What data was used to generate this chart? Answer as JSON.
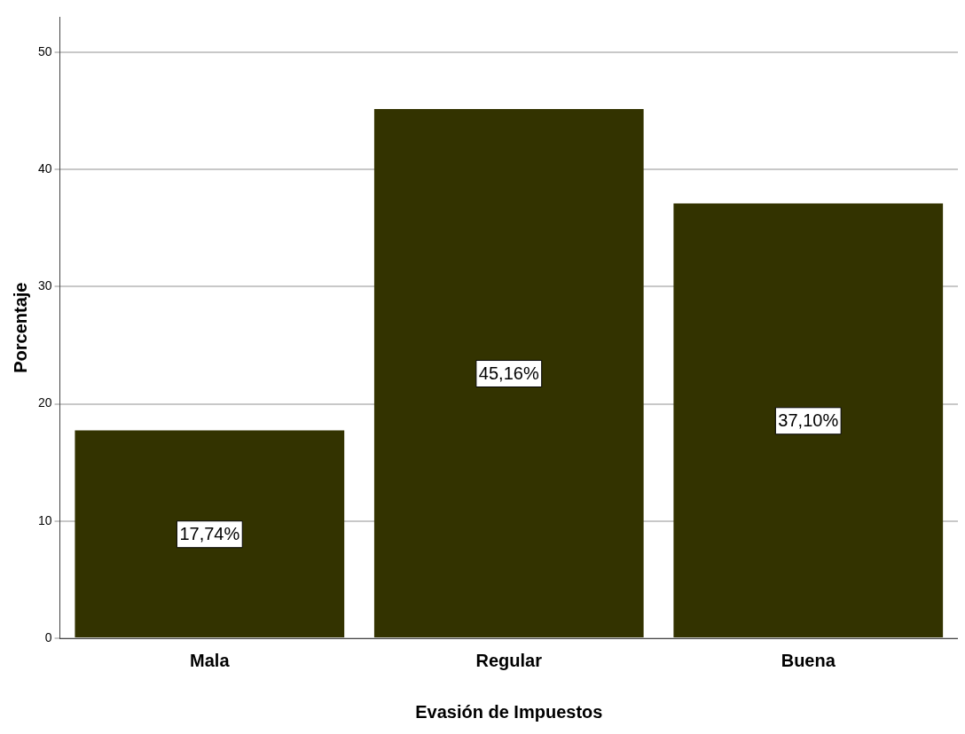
{
  "chart_data": {
    "type": "bar",
    "xlabel": "Evasión de Impuestos",
    "ylabel": "Porcentaje",
    "categories": [
      "Mala",
      "Regular",
      "Buena"
    ],
    "values": [
      17.74,
      45.16,
      37.1
    ],
    "value_labels": [
      "17,74%",
      "45,16%",
      "37,10%"
    ],
    "color": "#333300",
    "ylim": [
      0,
      53
    ],
    "yticks": [
      0,
      10,
      20,
      30,
      40,
      50
    ],
    "grid": "y",
    "legend": false
  }
}
